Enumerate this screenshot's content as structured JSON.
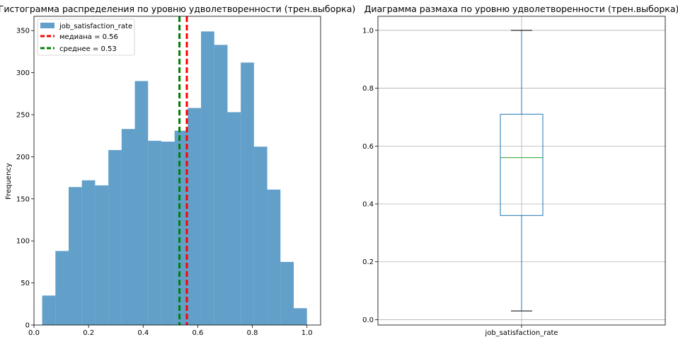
{
  "chart_data": [
    {
      "type": "bar",
      "title": "Гистограмма распределения по уровню удволетворенности (трен.выборка)",
      "xlabel": "",
      "ylabel": "Frequency",
      "xlim": [
        -0.0,
        1.05
      ],
      "ylim": [
        0,
        367
      ],
      "xticks": [
        "0.0",
        "0.2",
        "0.4",
        "0.6",
        "0.8",
        "1.0"
      ],
      "yticks": [
        "0",
        "50",
        "100",
        "150",
        "200",
        "250",
        "300",
        "350"
      ],
      "bins": {
        "edges": [
          0.03,
          0.0785,
          0.127,
          0.1755,
          0.224,
          0.2725,
          0.321,
          0.3695,
          0.418,
          0.4665,
          0.515,
          0.5635,
          0.612,
          0.6605,
          0.709,
          0.7575,
          0.806,
          0.8545,
          0.903,
          0.9515,
          1.0
        ],
        "counts": [
          35,
          88,
          164,
          172,
          166,
          208,
          233,
          290,
          219,
          218,
          231,
          258,
          349,
          333,
          253,
          312,
          212,
          161,
          75,
          20
        ]
      },
      "series": [
        {
          "name": "job_satisfaction_rate",
          "color": "#1f77b4"
        }
      ],
      "lines": [
        {
          "name": "медиана = 0.56",
          "x": 0.56,
          "color": "#ff0000"
        },
        {
          "name": "среднее = 0.53",
          "x": 0.533,
          "color": "#008000"
        }
      ],
      "legend": "top-left",
      "grid": false
    },
    {
      "type": "box",
      "title": "Диаграмма размаха по уровню удволетворенности (трен.выборка)",
      "categories": [
        "job_satisfaction_rate"
      ],
      "box": {
        "min": 0.03,
        "q1": 0.36,
        "median": 0.56,
        "q3": 0.71,
        "max": 1.0
      },
      "ylim": [
        -0.0185,
        1.0485
      ],
      "yticks": [
        "0.0",
        "0.2",
        "0.4",
        "0.6",
        "0.8",
        "1.0"
      ],
      "colors": {
        "box": "#1f77b4",
        "median": "#2ca02c"
      },
      "grid": true
    }
  ]
}
